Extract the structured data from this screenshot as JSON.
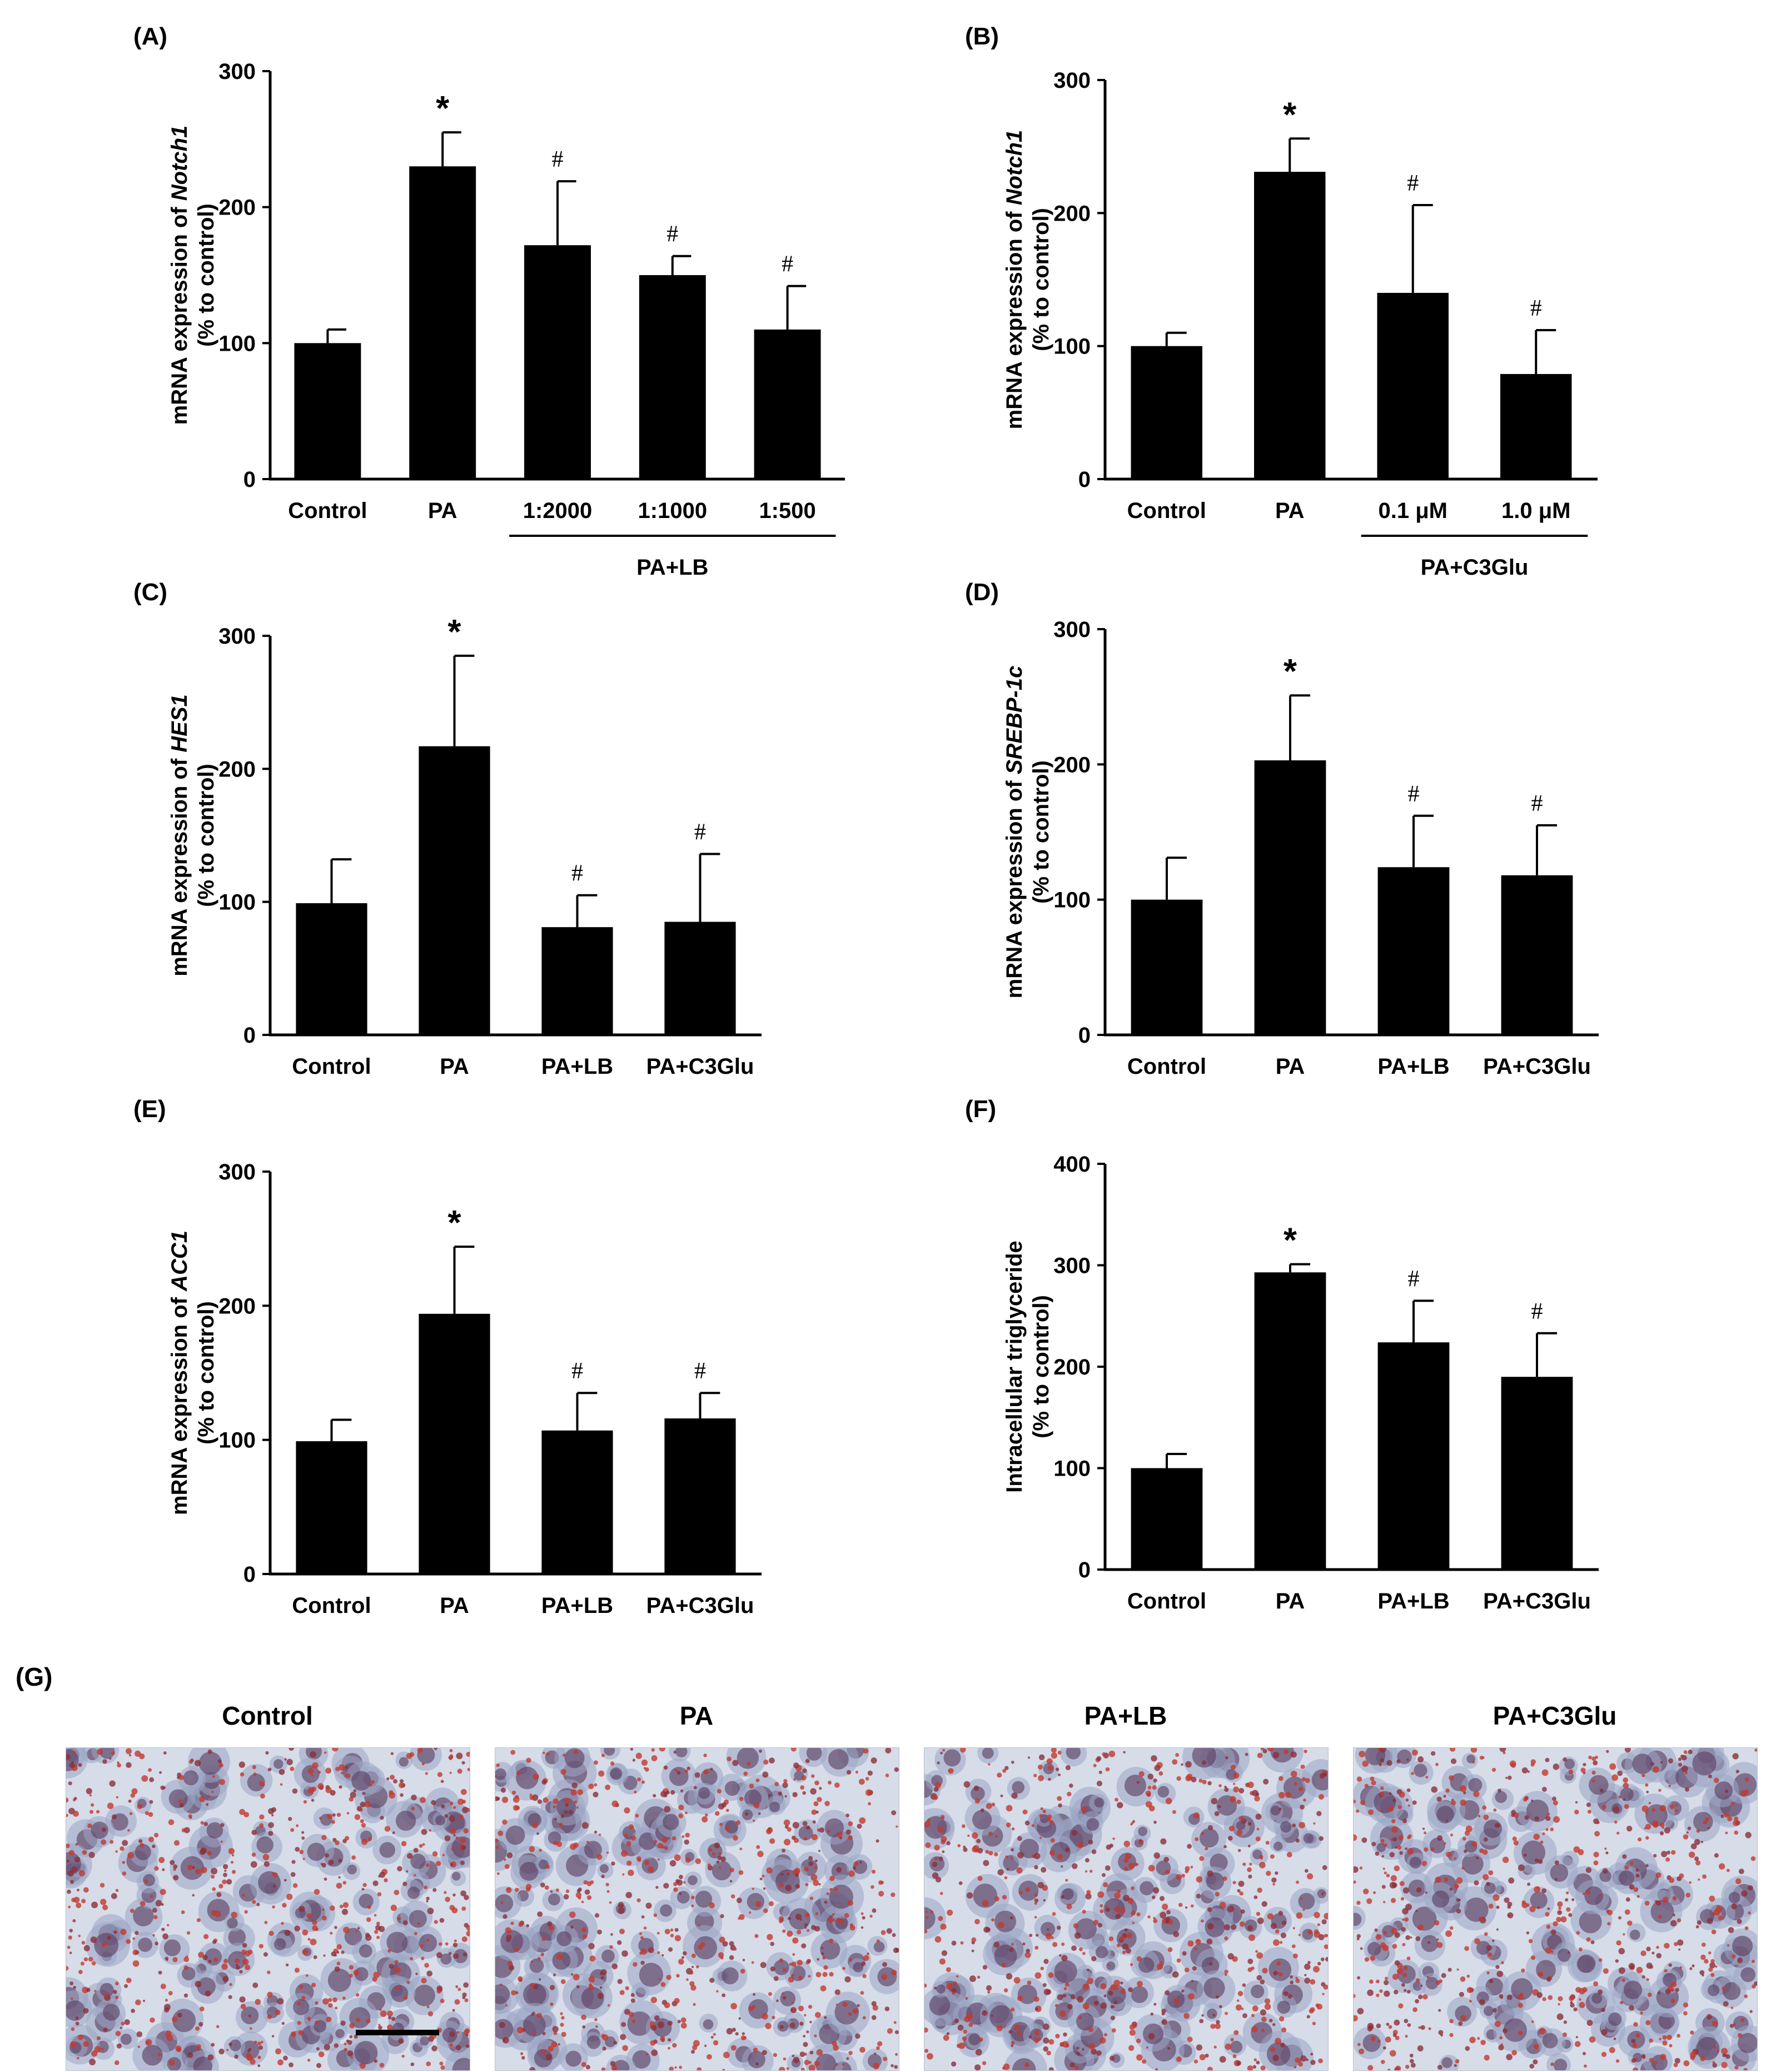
{
  "chart_data": [
    {
      "panel": "(A)",
      "type": "bar",
      "ylabel_line1": "mRNA expression of ",
      "ylabel_gene": "Notch1",
      "ylabel_line2": "(% to control)",
      "ylim": [
        0,
        300
      ],
      "yticks": [
        0,
        100,
        200,
        300
      ],
      "categories": [
        "Control",
        "PA",
        "1:2000",
        "1:1000",
        "1:500"
      ],
      "values": [
        100,
        230,
        172,
        150,
        110
      ],
      "errors": [
        10,
        25,
        47,
        14,
        32
      ],
      "marks": [
        "",
        "*",
        "#",
        "#",
        "#"
      ],
      "group_label": "PA+LB",
      "group_span": [
        2,
        4
      ]
    },
    {
      "panel": "(B)",
      "type": "bar",
      "ylabel_line1": "mRNA expression of ",
      "ylabel_gene": "Notch1",
      "ylabel_line2": "(% to control)",
      "ylim": [
        0,
        300
      ],
      "yticks": [
        0,
        100,
        200,
        300
      ],
      "categories": [
        "Control",
        "PA",
        "0.1 μM",
        "1.0 μM"
      ],
      "values": [
        100,
        231,
        140,
        79
      ],
      "errors": [
        10,
        25,
        66,
        33
      ],
      "marks": [
        "",
        "*",
        "#",
        "#"
      ],
      "group_label": "PA+C3Glu",
      "group_span": [
        2,
        3
      ]
    },
    {
      "panel": "(C)",
      "type": "bar",
      "ylabel_line1": "mRNA expression of ",
      "ylabel_gene": "HES1",
      "ylabel_line2": "(% to control)",
      "ylim": [
        0,
        300
      ],
      "yticks": [
        0,
        100,
        200,
        300
      ],
      "categories": [
        "Control",
        "PA",
        "PA+LB",
        "PA+C3Glu"
      ],
      "values": [
        99,
        217,
        81,
        85
      ],
      "errors": [
        33,
        68,
        24,
        51
      ],
      "marks": [
        "",
        "*",
        "#",
        "#"
      ]
    },
    {
      "panel": "(D)",
      "type": "bar",
      "ylabel_line1": "mRNA expression of ",
      "ylabel_gene": "SREBP-1c",
      "ylabel_line2": "(% to control)",
      "ylim": [
        0,
        300
      ],
      "yticks": [
        0,
        100,
        200,
        300
      ],
      "categories": [
        "Control",
        "PA",
        "PA+LB",
        "PA+C3Glu"
      ],
      "values": [
        100,
        203,
        124,
        118
      ],
      "errors": [
        31,
        48,
        38,
        37
      ],
      "marks": [
        "",
        "*",
        "#",
        "#"
      ]
    },
    {
      "panel": "(E)",
      "type": "bar",
      "ylabel_line1": "mRNA expression of ",
      "ylabel_gene": "ACC1",
      "ylabel_line2": "(% to control)",
      "ylim": [
        0,
        300
      ],
      "yticks": [
        0,
        100,
        200,
        300
      ],
      "categories": [
        "Control",
        "PA",
        "PA+LB",
        "PA+C3Glu"
      ],
      "values": [
        99,
        194,
        107,
        116
      ],
      "errors": [
        16,
        50,
        28,
        19
      ],
      "marks": [
        "",
        "*",
        "#",
        "#"
      ]
    },
    {
      "panel": "(F)",
      "type": "bar",
      "ylabel_line1": "Intracellular triglyceride",
      "ylabel_gene": "",
      "ylabel_line2": "(% to control)",
      "ylim": [
        0,
        400
      ],
      "yticks": [
        0,
        100,
        200,
        300,
        400
      ],
      "categories": [
        "Control",
        "PA",
        "PA+LB",
        "PA+C3Glu"
      ],
      "values": [
        100,
        293,
        224,
        190
      ],
      "errors": [
        14,
        8,
        41,
        43
      ],
      "marks": [
        "",
        "*",
        "#",
        "#"
      ]
    }
  ],
  "panel_g": {
    "label": "(G)",
    "images": [
      "Control",
      "PA",
      "PA+LB",
      "PA+C3Glu"
    ],
    "stain_colors": [
      "#c23a2e",
      "#8b2f3a",
      "#5a3a5e",
      "#9aa6c4"
    ]
  }
}
